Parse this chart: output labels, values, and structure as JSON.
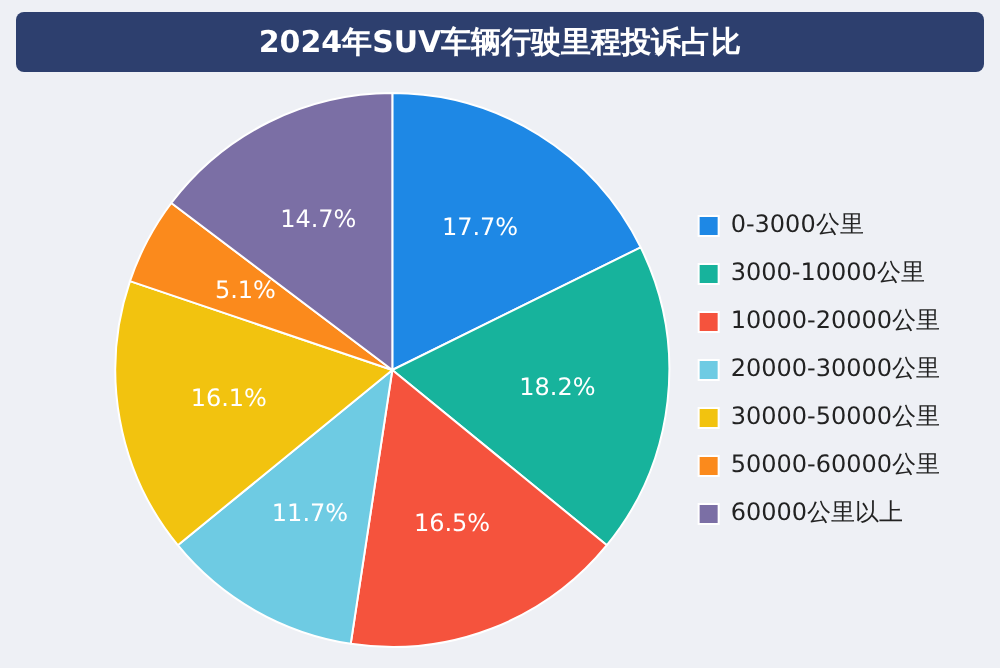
{
  "chart_data": {
    "type": "pie",
    "title": "2024年SUV车辆行驶里程投诉占比",
    "categories": [
      "0-3000公里",
      "3000-10000公里",
      "10000-20000公里",
      "20000-30000公里",
      "30000-50000公里",
      "50000-60000公里",
      "60000公里以上"
    ],
    "values": [
      17.7,
      18.2,
      16.5,
      11.7,
      16.1,
      5.1,
      14.7
    ],
    "value_labels": [
      "17.7%",
      "18.2%",
      "16.5%",
      "11.7%",
      "16.1%",
      "5.1%",
      "14.7%"
    ],
    "colors": [
      "#1e88e5",
      "#17b39c",
      "#f5533d",
      "#6ecbe3",
      "#f2c30f",
      "#fb8a1c",
      "#7b6fa5"
    ],
    "legend": "right"
  }
}
